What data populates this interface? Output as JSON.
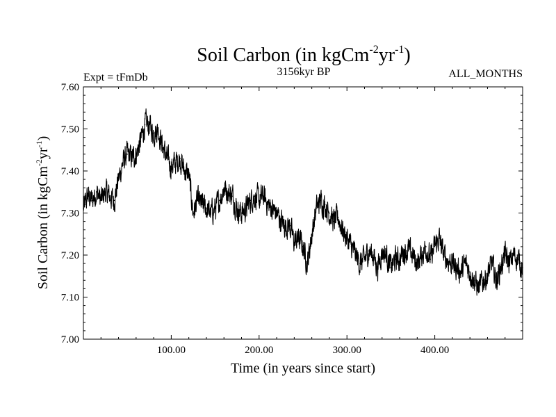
{
  "chart_data": {
    "type": "line",
    "title": "Soil Carbon (in kgCm",
    "title_sup1": "-2",
    "title_mid": "yr",
    "title_sup2": "-1",
    "title_end": ")",
    "experiment_label": "Expt = tFmDb",
    "subtitle": "3156kyr BP",
    "period_label": "ALL_MONTHS",
    "xlabel": "Time (in years since start)",
    "ylabel": "Soil Carbon (in kgCm",
    "ylabel_sup1": "-2",
    "ylabel_mid": "yr",
    "ylabel_sup2": "-1",
    "ylabel_end": ")",
    "xlim": [
      0,
      500
    ],
    "ylim": [
      7.0,
      7.6
    ],
    "xticks": [
      100,
      200,
      300,
      400
    ],
    "xtick_labels": [
      "100.00",
      "200.00",
      "300.00",
      "400.00"
    ],
    "yticks": [
      7.0,
      7.1,
      7.2,
      7.3,
      7.4,
      7.5,
      7.6
    ],
    "ytick_labels": [
      "7.00",
      "7.10",
      "7.20",
      "7.30",
      "7.40",
      "7.50",
      "7.60"
    ],
    "grid": false,
    "series": [
      {
        "name": "Soil Carbon",
        "color": "#000000",
        "x": [
          0,
          5,
          10,
          15,
          20,
          25,
          30,
          35,
          40,
          45,
          50,
          55,
          60,
          65,
          70,
          75,
          80,
          85,
          90,
          95,
          100,
          105,
          110,
          115,
          120,
          125,
          130,
          135,
          140,
          145,
          150,
          155,
          160,
          165,
          170,
          175,
          180,
          185,
          190,
          195,
          200,
          205,
          210,
          215,
          220,
          225,
          230,
          235,
          240,
          245,
          250,
          255,
          260,
          265,
          270,
          275,
          280,
          285,
          290,
          295,
          300,
          305,
          310,
          315,
          320,
          325,
          330,
          335,
          340,
          345,
          350,
          355,
          360,
          365,
          370,
          375,
          380,
          385,
          390,
          395,
          400,
          405,
          410,
          415,
          420,
          425,
          430,
          435,
          440,
          445,
          450,
          455,
          460,
          465,
          470,
          475,
          480,
          485,
          490,
          495,
          500
        ],
        "values": [
          7.31,
          7.34,
          7.33,
          7.35,
          7.33,
          7.35,
          7.34,
          7.33,
          7.38,
          7.42,
          7.44,
          7.43,
          7.44,
          7.47,
          7.51,
          7.51,
          7.49,
          7.5,
          7.46,
          7.43,
          7.41,
          7.42,
          7.43,
          7.4,
          7.39,
          7.3,
          7.33,
          7.32,
          7.31,
          7.3,
          7.31,
          7.33,
          7.36,
          7.35,
          7.34,
          7.31,
          7.3,
          7.31,
          7.33,
          7.34,
          7.33,
          7.34,
          7.32,
          7.31,
          7.3,
          7.28,
          7.27,
          7.27,
          7.23,
          7.24,
          7.22,
          7.18,
          7.25,
          7.31,
          7.33,
          7.32,
          7.3,
          7.28,
          7.29,
          7.26,
          7.24,
          7.22,
          7.2,
          7.18,
          7.19,
          7.21,
          7.2,
          7.17,
          7.21,
          7.2,
          7.17,
          7.19,
          7.19,
          7.21,
          7.21,
          7.2,
          7.18,
          7.2,
          7.22,
          7.19,
          7.22,
          7.24,
          7.2,
          7.19,
          7.18,
          7.17,
          7.16,
          7.18,
          7.16,
          7.14,
          7.12,
          7.14,
          7.15,
          7.18,
          7.14,
          7.17,
          7.2,
          7.18,
          7.2,
          7.19,
          7.17
        ]
      }
    ]
  }
}
